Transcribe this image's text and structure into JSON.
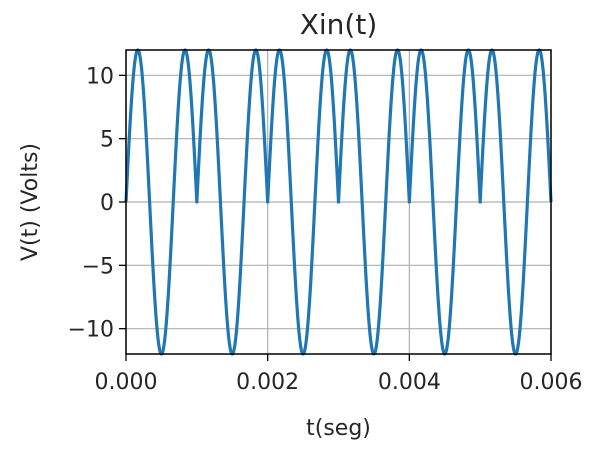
{
  "chart_data": {
    "type": "line",
    "title": "Xin(t)",
    "xlabel": "t(seg)",
    "ylabel": "V(t) (Volts)",
    "xlim": [
      0,
      0.006
    ],
    "ylim": [
      -12,
      12
    ],
    "grid": true,
    "x_ticks": [
      0,
      0.002,
      0.004,
      0.006
    ],
    "x_tick_labels": [
      "0.000",
      "0.002",
      "0.004",
      "0.006"
    ],
    "y_ticks": [
      10,
      5,
      0,
      -5,
      -10
    ],
    "y_tick_labels": [
      "10",
      "5",
      "0",
      "−5",
      "−10"
    ],
    "series": [
      {
        "color": "#1f77b4",
        "amplitude": 12,
        "segments": [
          {
            "t_start": 0.0,
            "t_end": 0.001,
            "freq_hz": 1500
          },
          {
            "t_start": 0.001,
            "t_end": 0.002,
            "freq_hz": 1500
          },
          {
            "t_start": 0.002,
            "t_end": 0.003,
            "freq_hz": 1500
          },
          {
            "t_start": 0.003,
            "t_end": 0.004,
            "freq_hz": 1500
          },
          {
            "t_start": 0.004,
            "t_end": 0.005,
            "freq_hz": 1500
          },
          {
            "t_start": 0.005,
            "t_end": 0.006,
            "freq_hz": 1500
          }
        ]
      }
    ]
  }
}
